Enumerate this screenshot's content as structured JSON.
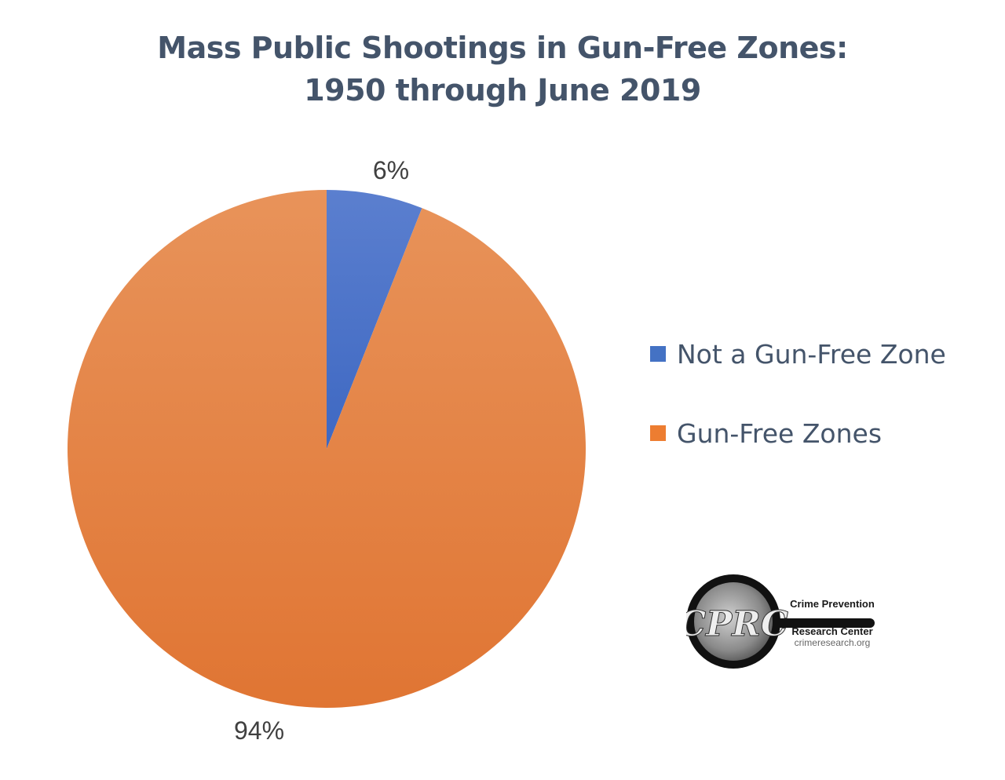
{
  "chart_data": {
    "type": "pie",
    "title": "Mass Public Shootings in Gun-Free Zones:",
    "subtitle": "1950 through June 2019",
    "categories": [
      "Not a Gun-Free Zone",
      "Gun-Free Zones"
    ],
    "values": [
      6,
      94
    ],
    "data_labels": [
      "6%",
      "94%"
    ],
    "colors": [
      "#4472c4",
      "#ed7d31"
    ],
    "legend_placement": "right"
  },
  "logo": {
    "initials": "CPRC",
    "line1": "Crime Prevention",
    "line2": "Research Center",
    "line3": "crimeresearch.org"
  }
}
